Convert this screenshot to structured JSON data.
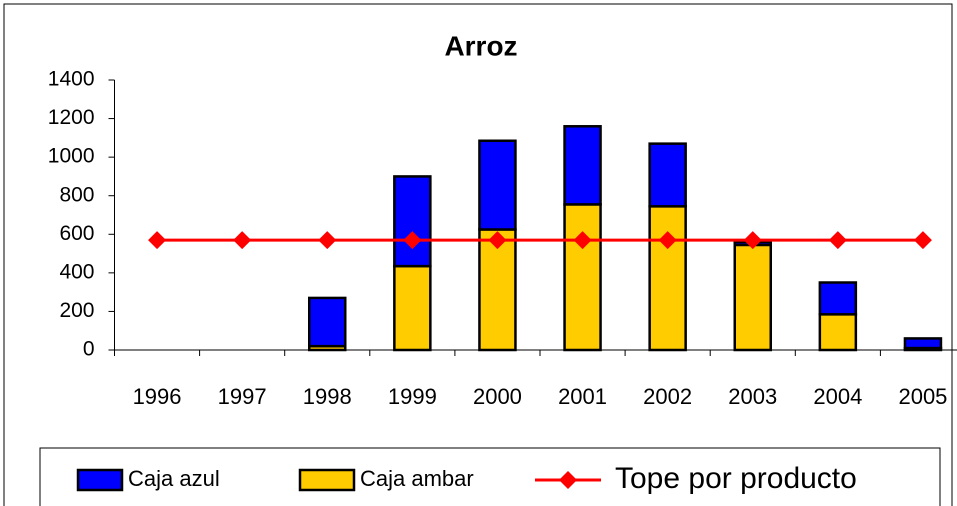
{
  "chart_data": {
    "type": "bar",
    "title": "Arroz",
    "categories": [
      "1996",
      "1997",
      "1998",
      "1999",
      "2000",
      "2001",
      "2002",
      "2003",
      "2004",
      "2005"
    ],
    "stacked": true,
    "series": [
      {
        "name": "Caja azul",
        "color": "#0000ff",
        "type": "bar",
        "values": [
          0,
          0,
          250,
          465,
          460,
          405,
          325,
          15,
          165,
          50
        ]
      },
      {
        "name": "Caja ambar",
        "color": "#ffcc00",
        "type": "bar",
        "values": [
          0,
          0,
          20,
          435,
          625,
          755,
          745,
          545,
          185,
          10
        ]
      },
      {
        "name": "Tope por producto",
        "color": "#ff0000",
        "type": "line",
        "values": [
          570,
          570,
          570,
          570,
          570,
          570,
          570,
          570,
          570,
          570
        ]
      }
    ],
    "ylim": [
      0,
      1400
    ],
    "yticks": [
      0,
      200,
      400,
      600,
      800,
      1000,
      1200,
      1400
    ]
  }
}
